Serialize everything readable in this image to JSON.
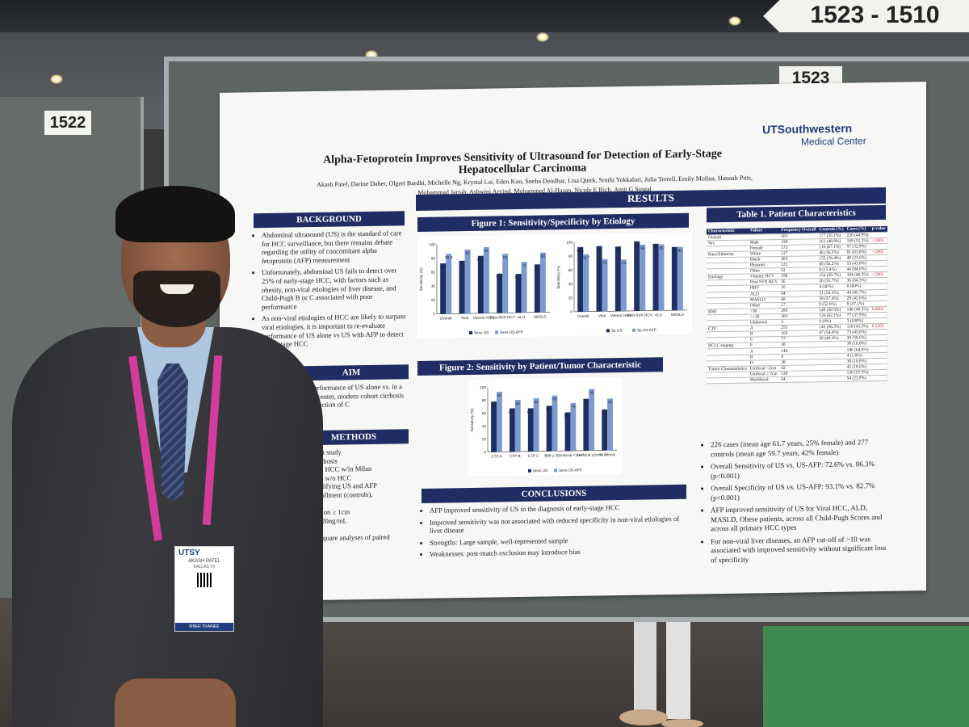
{
  "signs": {
    "left_booth": "1522",
    "center_booth": "1523",
    "range": "1523 - 1510"
  },
  "poster": {
    "title": "Alpha-Fetoprotein Improves Sensitivity of Ultrasound for Detection of Early-Stage Hepatocellular Carcinoma",
    "authors": "Akash Patel, Darine Daher, Olgert Bardhi, Michelle Ng, Krystal Lai, Eden Koo, Sneha Deodhar, Lisa Quirk, Sruthi Yekkaluri, Julia Terrell, Emily Molina, Hannah Pitts, Mohammad Jarrah, Ashwini Arvind, Mohammed Al-Hasan, Nicole E Rich, Amit G Singal",
    "logo_main": "UTSouthwestern",
    "logo_sub": "Medical Center",
    "background": {
      "heading": "BACKGROUND",
      "bullets": [
        "Abdominal ultrasound (US) is the standard of care for HCC surveillance, but there remains debate regarding the utility of concomitant alpha fetoprotein (AFP) measurement",
        "Unfortunately, abdominal US fails to detect over 25% of early-stage HCC, with factors such as obesity, non-viral etiologies of liver disease, and Child-Pugh B or C associated with poor performance",
        "As non-viral etiologies of HCC are likely to surpass viral etiologies, it is important to re-evaluate performance of US alone vs US with AFP to detect early-stage HCC"
      ]
    },
    "aim": {
      "heading": "AIM",
      "text": "the performance of US alone vs. in a multi-center, modern cohort cirrhosis for detection of C"
    },
    "methods": {
      "heading": "METHODS",
      "lines": [
        "cohort study",
        "n Cirrhosis",
        "osis + HCC w/in Milan",
        "rhosis w/o HCC",
        ": Qualifying US and AFP",
        "y enrollment (controls),",
        "ases)",
        "er lesion ≥ 1cm",
        "FP ≥ 20ng/mL",
        "sis",
        "Chi Square analyses of paired"
      ]
    },
    "results": {
      "heading": "RESULTS",
      "fig1_title": "Figure 1: Sensitivity/Specificity by Etiology",
      "fig2_title": "Figure 2: Sensitivity by Patient/Tumor Characteristic"
    },
    "conclusions": {
      "heading": "CONCLUSIONS",
      "bullets": [
        "AFP improved sensitivity of US in the diagnosis of early-stage HCC",
        "Improved sensitivity was not associated with reduced specificity in non-viral etiologies of liver disease",
        "Strengths: Large sample, well-represented sample",
        "Weaknesses: post-match exclusion may introduce bias"
      ]
    },
    "table": {
      "heading": "Table 1. Patient Characteristics",
      "columns": [
        "Characteristic",
        "Values",
        "Frequency Overall",
        "Controls (%)",
        "Cases (%)",
        "p-value"
      ],
      "rows": [
        [
          "Overall",
          "",
          "503",
          "277 (55.1%)",
          "226 (44.9%)",
          ""
        ],
        [
          "Sex",
          "Male",
          "330",
          "161 (48.8%)",
          "169 (51.2%)",
          "<.0001"
        ],
        [
          "",
          "Female",
          "173",
          "116 (67.1%)",
          "57 (32.9%)",
          ""
        ],
        [
          "Race/Ethnicity",
          "White",
          "127",
          "46 (36.2%)",
          "81 (63.8%)",
          "<.0001"
        ],
        [
          "",
          "Black",
          "203",
          "155 (76.4%)",
          "48 (23.6%)",
          ""
        ],
        [
          "",
          "Hispanic",
          "121",
          "68 (56.2%)",
          "53 (43.8%)",
          ""
        ],
        [
          "",
          "Other",
          "52",
          "8 (15.4%)",
          "44 (84.6%)",
          ""
        ],
        [
          "Etiology",
          "Viremic HCV",
          "258",
          "154 (59.7%)",
          "104 (40.3%)",
          "<.0001"
        ],
        [
          "",
          "Post-SVR HCV",
          "56",
          "20 (35.7%)",
          "36 (64.3%)",
          ""
        ],
        [
          "",
          "HBV",
          "10",
          "4 (40%)",
          "6 (60%)",
          ""
        ],
        [
          "",
          "ALD",
          "94",
          "51 (54.3%)",
          "43 (45.7%)",
          ""
        ],
        [
          "",
          "MASLD",
          "68",
          "39 (57.4%)",
          "29 (42.6%)",
          ""
        ],
        [
          "",
          "Other",
          "17",
          "9 (52.9%)",
          "8 (47.1%)",
          ""
        ],
        [
          "BMI",
          "<30",
          "295",
          "149 (50.5%)",
          "146 (49.5%)",
          "0.0062"
        ],
        [
          "",
          ">=30",
          "203",
          "126 (62.1%)",
          "77 (37.9%)",
          ""
        ],
        [
          "",
          "Unknown",
          "3",
          "0 (0%)",
          "3 (100%)",
          ""
        ],
        [
          "CTP",
          "A",
          "253",
          "143 (56.5%)",
          "110 (43.5%)",
          "0.5393"
        ],
        [
          "",
          "B",
          "160",
          "87 (54.4%)",
          "73 (45.6%)",
          ""
        ],
        [
          "",
          "C",
          "77",
          "38 (49.4%)",
          "39 (50.6%)",
          ""
        ],
        [
          "BCLC staging",
          "0",
          "38",
          "",
          "38 (16.8%)",
          ""
        ],
        [
          "",
          "A",
          "146",
          "",
          "146 (64.6%)",
          ""
        ],
        [
          "",
          "B",
          "4",
          "",
          "4 (1.8%)",
          ""
        ],
        [
          "",
          "D",
          "38",
          "",
          "38 (16.8%)",
          ""
        ],
        [
          "Tumor Characteristics",
          "Unifocal <2cm",
          "42",
          "",
          "42 (18.6%)",
          ""
        ],
        [
          "",
          "Unifocal ≥ 2cm",
          "130",
          "",
          "130 (57.5%)",
          ""
        ],
        [
          "",
          "Multifocal",
          "54",
          "",
          "54 (23.9%)",
          ""
        ]
      ]
    },
    "summary": {
      "bullets": [
        "226 cases (mean age 61.7 years, 25% female) and 277 controls (mean age 59.7 years, 42% female)",
        "Overall Sensitivity of US vs. US-AFP: 72.6% vs. 86.3% (p<0.001)",
        "Overall Specificity of US vs. US-AFP: 93.1% vs. 82.7% (p<0.001)",
        "AFP improved sensitivity of US for Viral HCC, ALD, MASLD, Obese patients, across all Child-Pugh Scores and across all primary HCC types",
        "For non-viral liver diseases, an AFP cut-off of >10 was associated with improved sensitivity without significant loss of specificity"
      ]
    }
  },
  "badge": {
    "header": "UTSY",
    "name": "AKASH PATEL",
    "org": "DALLAS TX",
    "role": "MBER TRAINEE"
  },
  "chart_data": [
    {
      "type": "bar",
      "title": "Figure 1: Sensitivity/Specificity by Etiology",
      "ylabel": "Sensitivity (%)",
      "categories": [
        "Overall",
        "Viral",
        "Viremic HCV",
        "Post-SVR HCV",
        "ALD",
        "MASLD"
      ],
      "series": [
        {
          "name": "Sens US",
          "values": [
            72.6,
            76,
            82.6,
            56.6,
            55.8,
            69
          ]
        },
        {
          "name": "Sens US-AFP",
          "values": [
            86.3,
            92,
            95,
            85,
            73,
            86
          ]
        }
      ],
      "ylim": [
        0,
        100
      ]
    },
    {
      "type": "bar",
      "title": "Figure 1: Sensitivity/Specificity by Etiology",
      "ylabel": "Specificity (%)",
      "categories": [
        "Overall",
        "Viral",
        "Viremic HCV",
        "Post-SVR HCV",
        "ALD",
        "MASLD"
      ],
      "series": [
        {
          "name": "Sp US",
          "values": [
            93.1,
            94,
            93,
            100,
            96,
            91
          ]
        },
        {
          "name": "Sp US-AFP",
          "values": [
            82.7,
            75,
            74,
            95,
            95,
            91
          ]
        }
      ],
      "ylim": [
        0,
        100
      ]
    },
    {
      "type": "bar",
      "title": "Figure 2: Sensitivity by Patient/Tumor Characteristic",
      "ylabel": "Sensitivity (%)",
      "categories": [
        "CTP A",
        "CTP B",
        "CTP C",
        "BMI ≥ 30",
        "Unifocal <2cm",
        "Unifocal ≥2cm",
        "Multifocal"
      ],
      "series": [
        {
          "name": "Sens US",
          "values": [
            78,
            67.1,
            66.7,
            70.1,
            59.5,
            80,
            63
          ]
        },
        {
          "name": "Sens US-AFP",
          "values": [
            93,
            80,
            82,
            86,
            74,
            95,
            80
          ]
        }
      ],
      "ylim": [
        0,
        100
      ]
    }
  ]
}
